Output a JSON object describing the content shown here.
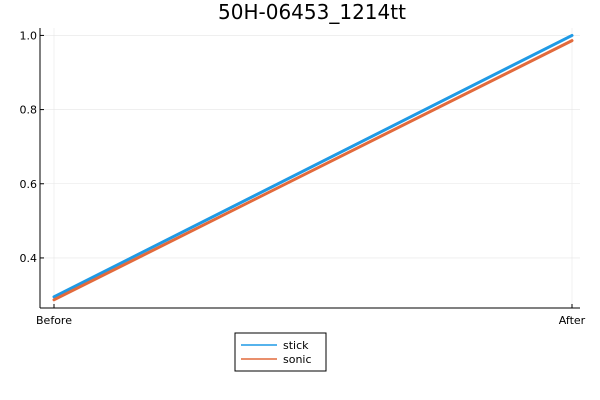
{
  "chart_data": {
    "type": "line",
    "title": "50H-06453_1214tt",
    "xlabel": "",
    "ylabel": "",
    "categories": [
      "Before",
      "After"
    ],
    "ylim": [
      0.265,
      1.02
    ],
    "yticks": [
      0.4,
      0.6,
      0.8,
      1.0
    ],
    "ytick_labels": [
      "0.4",
      "0.6",
      "0.8",
      "1.0"
    ],
    "grid": true,
    "legend_position": "bottom-center",
    "series": [
      {
        "name": "stick",
        "values": [
          0.295,
          1.0
        ],
        "color": "#1f9ae5"
      },
      {
        "name": "sonic",
        "values": [
          0.287,
          0.986
        ],
        "color": "#e26a3c"
      }
    ]
  }
}
